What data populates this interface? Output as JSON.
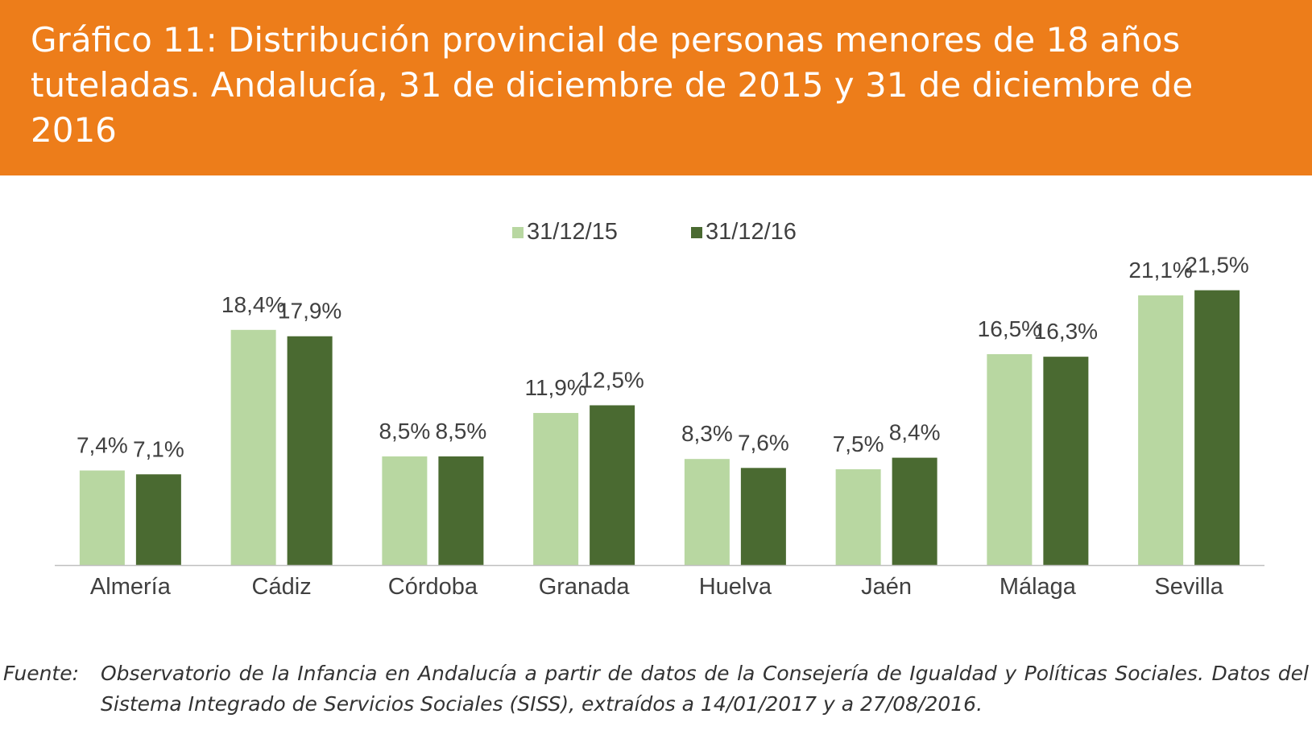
{
  "title": "Gráfico 11: Distribución provincial de personas menores de 18 años tuteladas. Andalucía, 31 de diciembre de 2015 y 31 de diciembre de 2016",
  "source_label": "Fuente:",
  "source_text": "Observatorio de la Infancia en Andalucía a partir de datos de la Consejería de Igualdad y Políticas Sociales. Datos del Sistema Integrado de Servicios Sociales (SISS), extraídos a 14/01/2017 y a 27/08/2016.",
  "colors": {
    "header": "#ED7D1A",
    "series_2015": "#B8D7A1",
    "series_2016": "#4A6A31",
    "axis": "#BFBFBF"
  },
  "chart_data": {
    "type": "bar",
    "title": "",
    "xlabel": "",
    "ylabel": "",
    "ylim": [
      0,
      25
    ],
    "grid": false,
    "legend_position": "top-center",
    "categories": [
      "Almería",
      "Cádiz",
      "Córdoba",
      "Granada",
      "Huelva",
      "Jaén",
      "Málaga",
      "Sevilla"
    ],
    "series": [
      {
        "name": "31/12/15",
        "values": [
          7.4,
          18.4,
          8.5,
          11.9,
          8.3,
          7.5,
          16.5,
          21.1
        ],
        "labels": [
          "7,4%",
          "18,4%",
          "8,5%",
          "11,9%",
          "8,3%",
          "7,5%",
          "16,5%",
          "21,1%"
        ]
      },
      {
        "name": "31/12/16",
        "values": [
          7.1,
          17.9,
          8.5,
          12.5,
          7.6,
          8.4,
          16.3,
          21.5
        ],
        "labels": [
          "7,1%",
          "17,9%",
          "8,5%",
          "12,5%",
          "7,6%",
          "8,4%",
          "16,3%",
          "21,5%"
        ]
      }
    ]
  }
}
